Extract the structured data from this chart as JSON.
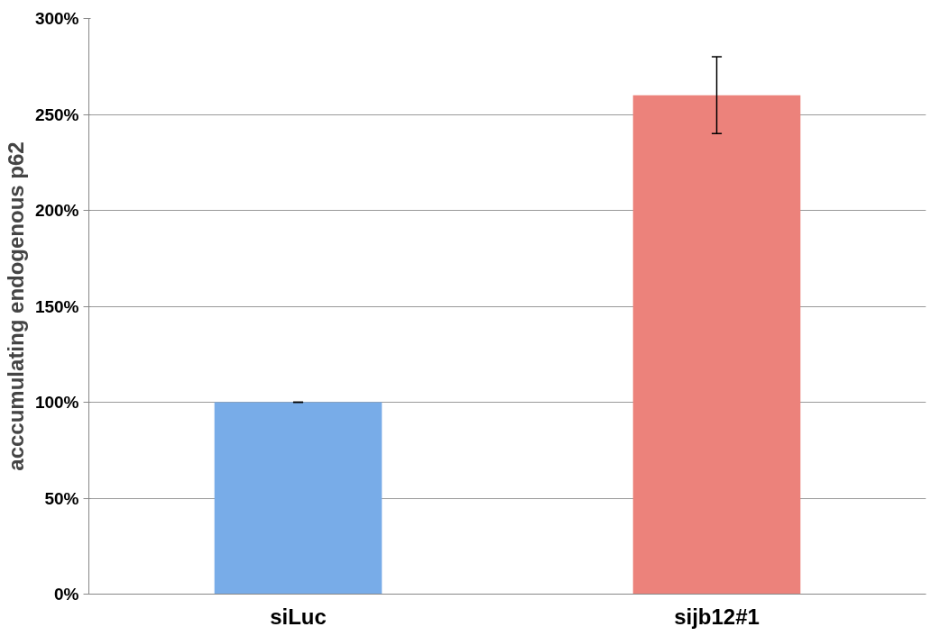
{
  "chart_data": {
    "type": "bar",
    "ylabel": "acccumulating endogenous p62",
    "categories": [
      "siLuc",
      "sijb12#1"
    ],
    "values": [
      100,
      260
    ],
    "errors": [
      0,
      20
    ],
    "colors": [
      "#78ace8",
      "#ec827b"
    ],
    "ylim": [
      0,
      300
    ],
    "yticks": [
      {
        "value": 0,
        "label": "0%"
      },
      {
        "value": 50,
        "label": "50%"
      },
      {
        "value": 100,
        "label": "100%"
      },
      {
        "value": 150,
        "label": "150%"
      },
      {
        "value": 200,
        "label": "200%"
      },
      {
        "value": 250,
        "label": "250%"
      },
      {
        "value": 300,
        "label": "300%"
      }
    ],
    "grid": "y"
  }
}
